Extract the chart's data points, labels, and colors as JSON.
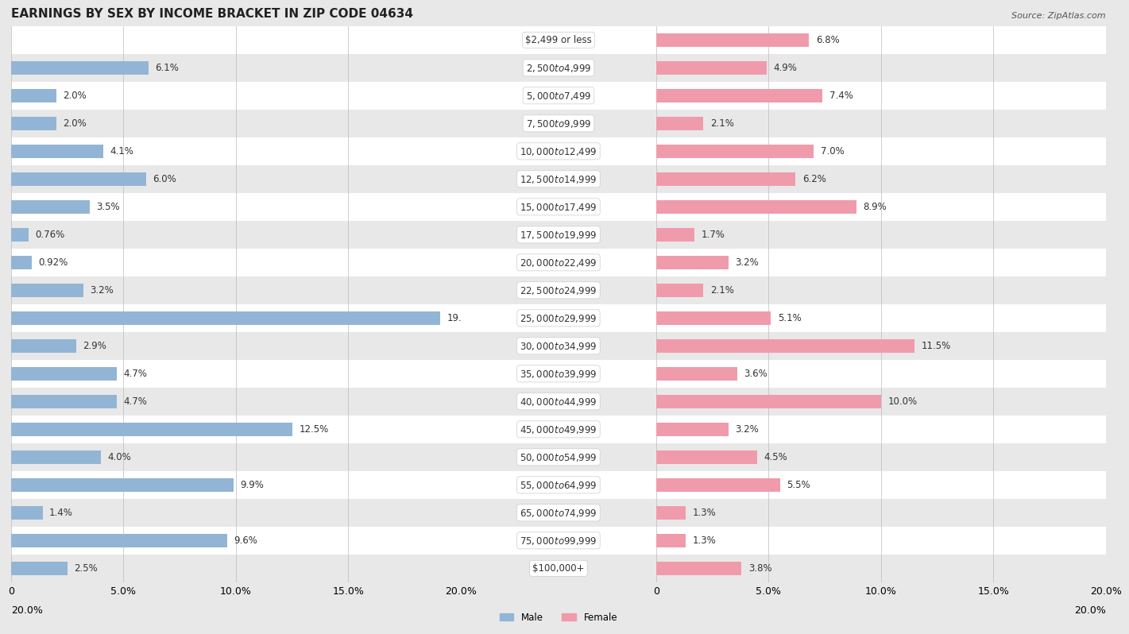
{
  "title": "EARNINGS BY SEX BY INCOME BRACKET IN ZIP CODE 04634",
  "source": "Source: ZipAtlas.com",
  "categories": [
    "$2,499 or less",
    "$2,500 to $4,999",
    "$5,000 to $7,499",
    "$7,500 to $9,999",
    "$10,000 to $12,499",
    "$12,500 to $14,999",
    "$15,000 to $17,499",
    "$17,500 to $19,999",
    "$20,000 to $22,499",
    "$22,500 to $24,999",
    "$25,000 to $29,999",
    "$30,000 to $34,999",
    "$35,000 to $39,999",
    "$40,000 to $44,999",
    "$45,000 to $49,999",
    "$50,000 to $54,999",
    "$55,000 to $64,999",
    "$65,000 to $74,999",
    "$75,000 to $99,999",
    "$100,000+"
  ],
  "male_values": [
    0.0,
    6.1,
    2.0,
    2.0,
    4.1,
    6.0,
    3.5,
    0.76,
    0.92,
    3.2,
    19.1,
    2.9,
    4.7,
    4.7,
    12.5,
    4.0,
    9.9,
    1.4,
    9.6,
    2.5
  ],
  "female_values": [
    6.8,
    4.9,
    7.4,
    2.1,
    7.0,
    6.2,
    8.9,
    1.7,
    3.2,
    2.1,
    5.1,
    11.5,
    3.6,
    10.0,
    3.2,
    4.5,
    5.5,
    1.3,
    1.3,
    3.8
  ],
  "male_color": "#93b5d5",
  "female_color": "#f09bab",
  "male_label": "Male",
  "female_label": "Female",
  "xlim": 20.0,
  "row_colors": [
    "#ffffff",
    "#e8e8e8"
  ],
  "title_fontsize": 11,
  "source_fontsize": 8,
  "label_fontsize": 8.5,
  "value_fontsize": 8.5,
  "axis_fontsize": 9
}
